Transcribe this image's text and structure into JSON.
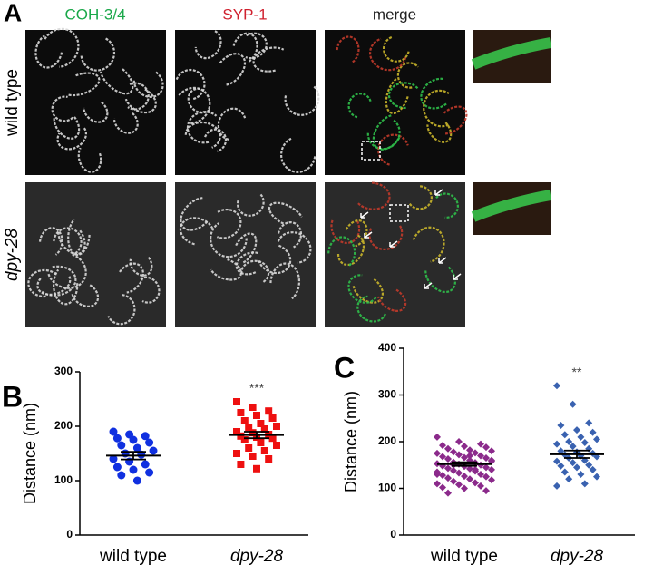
{
  "panel_labels": [
    "A",
    "B",
    "C"
  ],
  "panel_a": {
    "columns": [
      "COH-3/4",
      "SYP-1",
      "merge"
    ],
    "rows": [
      "wild type",
      "dpy-28"
    ]
  },
  "chart_data": [
    {
      "type": "strip",
      "ylabel": "Distance (nm)",
      "categories": [
        "wild type",
        "dpy-28"
      ],
      "ylim": [
        0,
        300
      ],
      "yticks": [
        0,
        100,
        200,
        300
      ],
      "significance_labels": [
        null,
        "***"
      ],
      "means": [
        146,
        184
      ],
      "sems": [
        7,
        6
      ],
      "series": [
        {
          "color": "#1030e0",
          "marker": "circle",
          "values": [
            190,
            185,
            182,
            178,
            175,
            170,
            165,
            160,
            155,
            150,
            148,
            140,
            135,
            130,
            125,
            120,
            115,
            110,
            100
          ]
        },
        {
          "color": "#ee1010",
          "marker": "square",
          "values": [
            245,
            235,
            228,
            225,
            220,
            215,
            210,
            205,
            200,
            198,
            195,
            190,
            188,
            185,
            182,
            180,
            178,
            175,
            170,
            165,
            160,
            155,
            150,
            145,
            140,
            130,
            122
          ]
        }
      ]
    },
    {
      "type": "strip",
      "ylabel": "Distance (nm)",
      "categories": [
        "wild type",
        "dpy-28"
      ],
      "ylim": [
        0,
        400
      ],
      "yticks": [
        0,
        100,
        200,
        300,
        400
      ],
      "significance_labels": [
        null,
        "**"
      ],
      "means": [
        152,
        173
      ],
      "sems": [
        4,
        8
      ],
      "series": [
        {
          "color": "#8b2a8b",
          "marker": "diamond",
          "values": [
            210,
            200,
            195,
            192,
            190,
            188,
            185,
            182,
            180,
            178,
            176,
            175,
            172,
            170,
            168,
            166,
            165,
            163,
            160,
            158,
            156,
            155,
            153,
            152,
            150,
            148,
            147,
            145,
            143,
            142,
            140,
            138,
            137,
            135,
            133,
            130,
            128,
            126,
            125,
            122,
            120,
            118,
            115,
            112,
            110,
            108,
            105,
            102,
            100,
            95,
            90,
            170,
            160,
            150,
            140,
            130
          ]
        },
        {
          "color": "#3a62b0",
          "marker": "diamond",
          "values": [
            320,
            280,
            240,
            235,
            225,
            220,
            215,
            210,
            205,
            200,
            198,
            195,
            190,
            185,
            180,
            178,
            175,
            172,
            170,
            168,
            165,
            160,
            158,
            155,
            150,
            148,
            145,
            140,
            135,
            130,
            125,
            120,
            110,
            105
          ]
        }
      ]
    }
  ]
}
